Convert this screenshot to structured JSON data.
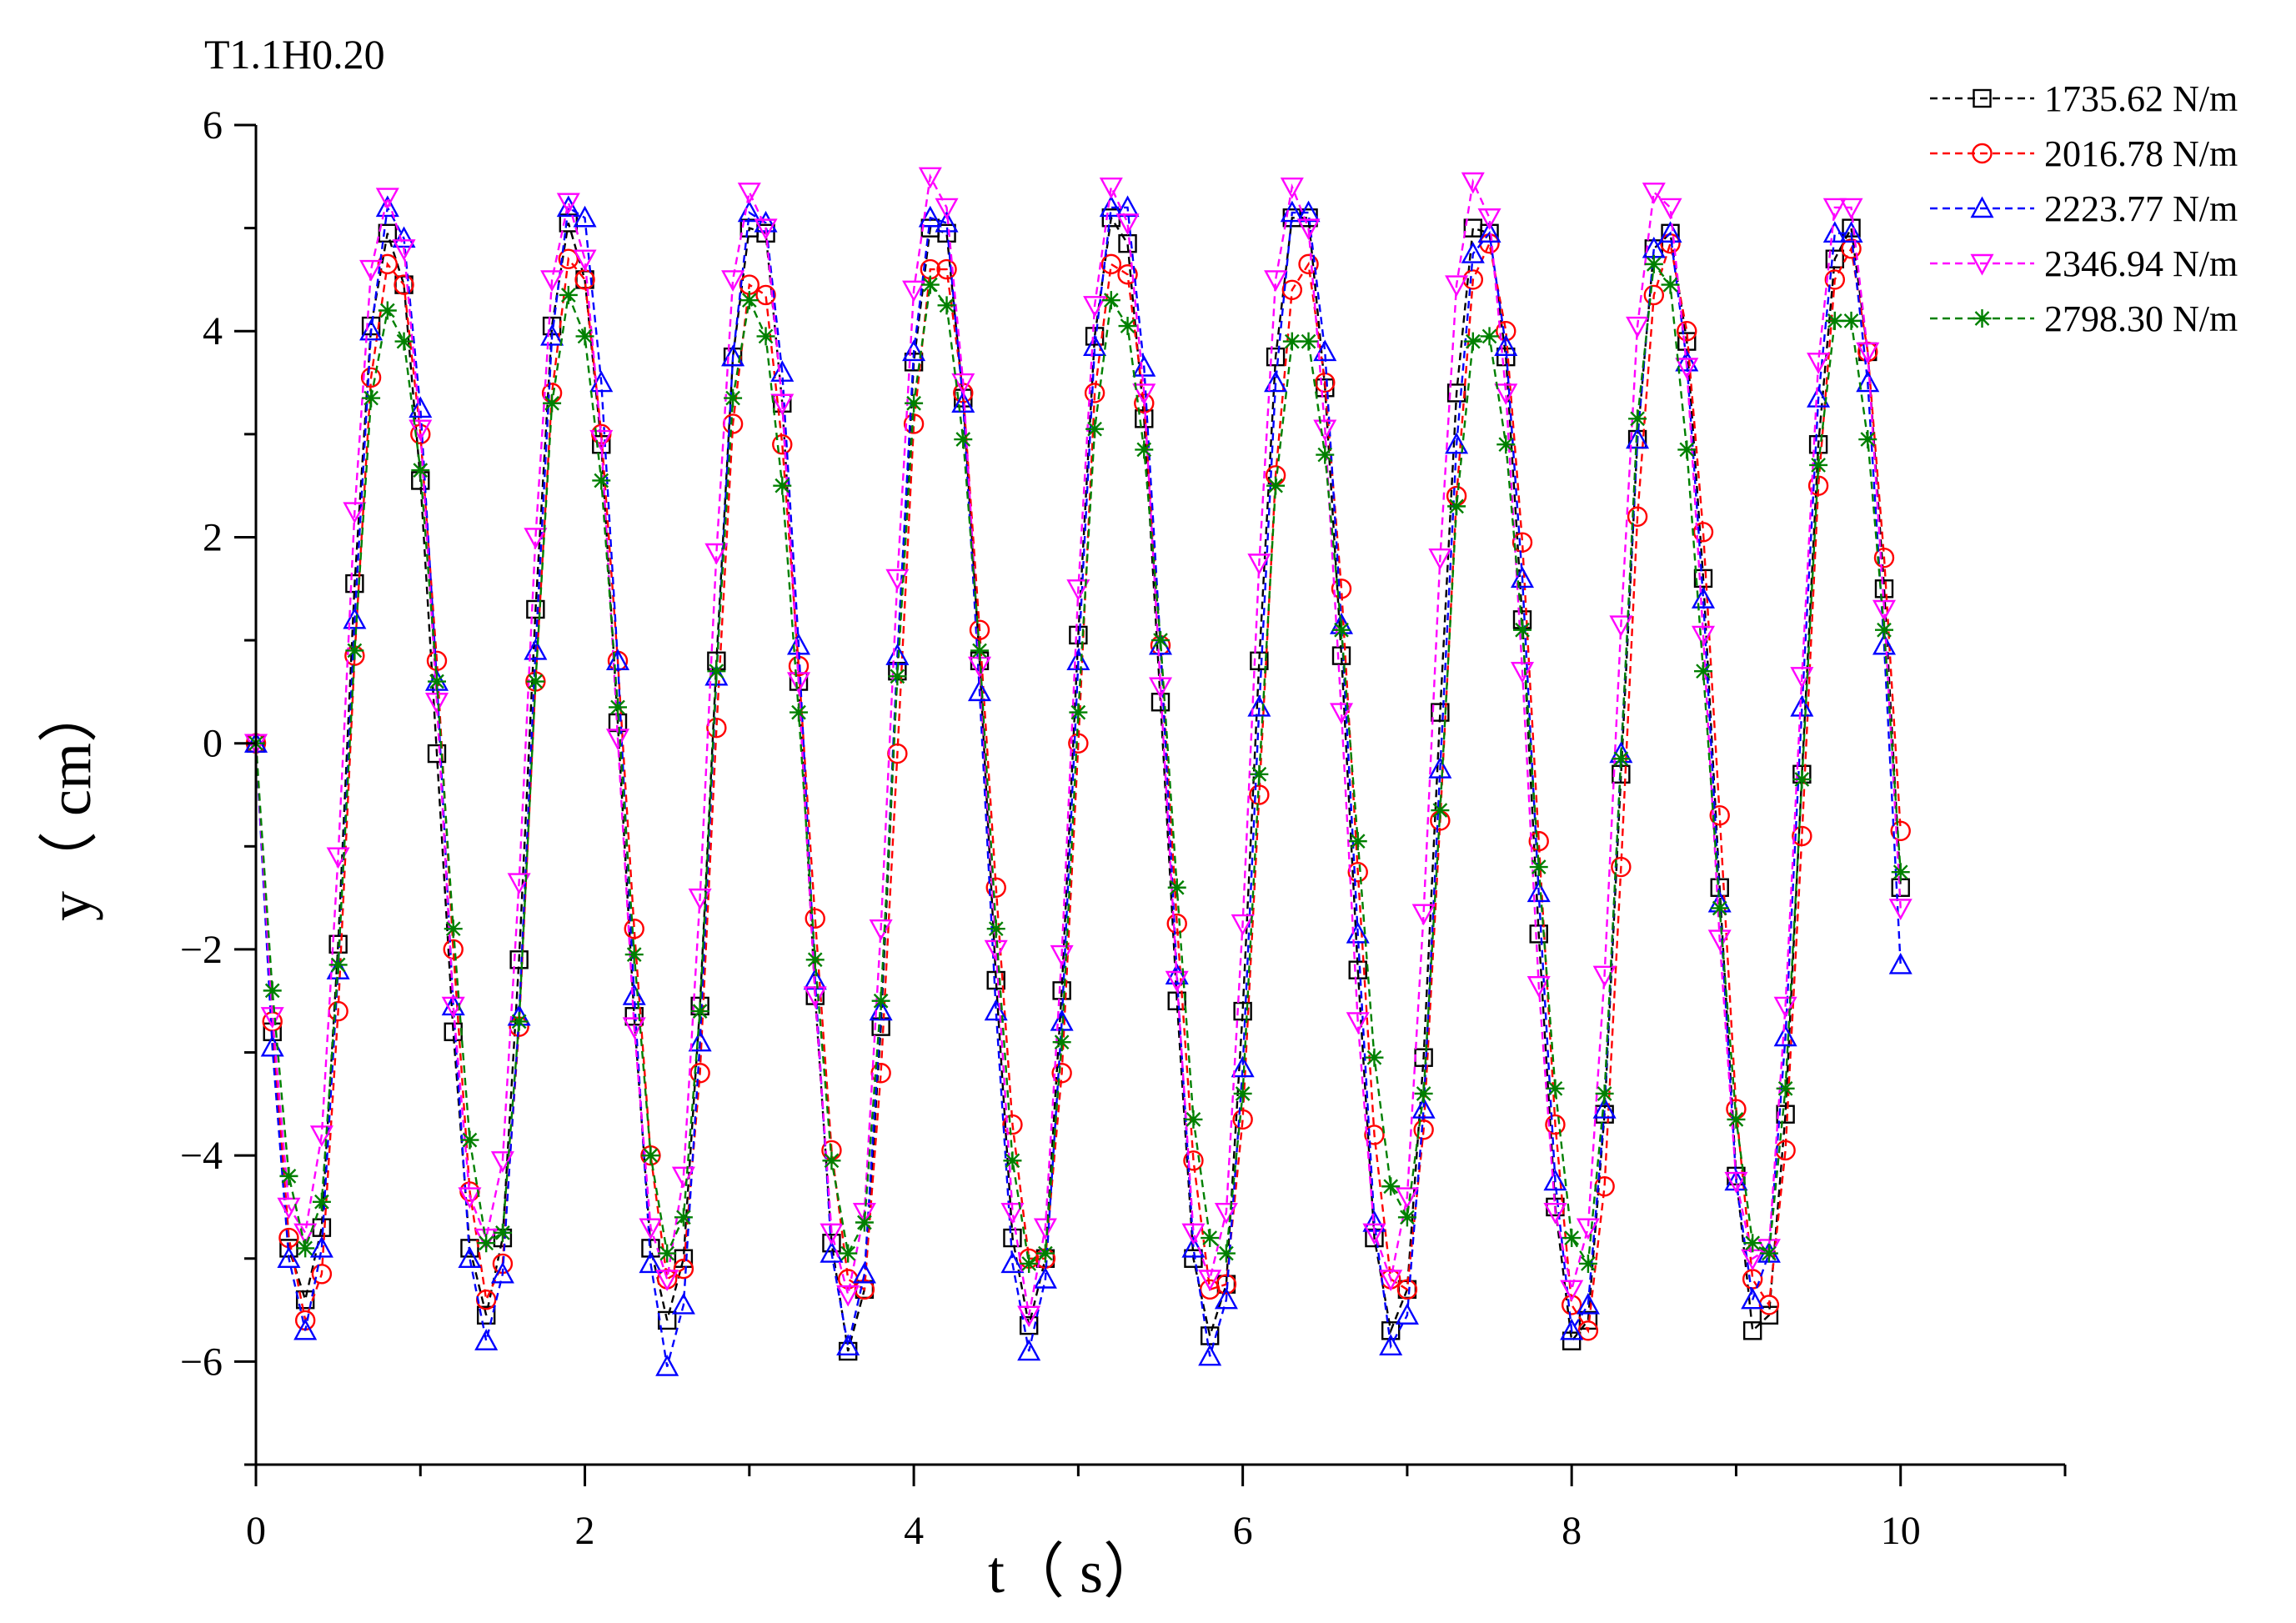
{
  "chart_data": {
    "type": "line",
    "title": "T1.1H0.20",
    "xlabel": "t（ s）",
    "ylabel": "y（ cm）",
    "xlim": [
      0,
      11
    ],
    "ylim": [
      -7,
      6
    ],
    "xticks": [
      0,
      2,
      4,
      6,
      8,
      10
    ],
    "xtick_labels": [
      "0",
      "2",
      "4",
      "6",
      "8",
      "10"
    ],
    "yticks": [
      6,
      4,
      2,
      0,
      -2,
      -4,
      -6
    ],
    "ytick_labels": [
      "6",
      "4",
      "2",
      "0",
      "−2",
      "−4",
      "−6"
    ],
    "legend_position": "top-right",
    "series": [
      {
        "name": "1735.62 N/m",
        "color": "#000000",
        "marker": "square",
        "x": [
          0,
          0.1,
          0.2,
          0.3,
          0.4,
          0.5,
          0.6,
          0.7,
          0.8,
          0.9,
          1.0,
          1.1,
          1.2,
          1.3,
          1.4,
          1.5,
          1.6,
          1.7,
          1.8,
          1.9,
          2.0,
          2.1,
          2.2,
          2.3,
          2.4,
          2.5,
          2.6,
          2.7,
          2.8,
          2.9,
          3.0,
          3.1,
          3.2,
          3.3,
          3.4,
          3.5,
          3.6,
          3.7,
          3.8,
          3.9,
          4.0,
          4.1,
          4.2,
          4.3,
          4.4,
          4.5,
          4.6,
          4.7,
          4.8,
          4.9,
          5.0,
          5.1,
          5.2,
          5.3,
          5.4,
          5.5,
          5.6,
          5.7,
          5.8,
          5.9,
          6.0,
          6.1,
          6.2,
          6.3,
          6.4,
          6.5,
          6.6,
          6.7,
          6.8,
          6.9,
          7.0,
          7.1,
          7.2,
          7.3,
          7.4,
          7.5,
          7.6,
          7.7,
          7.8,
          7.9,
          8.0,
          8.1,
          8.2,
          8.3,
          8.4,
          8.5,
          8.6,
          8.7,
          8.8,
          8.9,
          9.0,
          9.1,
          9.2,
          9.3,
          9.4,
          9.5,
          9.6,
          9.7,
          9.8,
          9.9,
          10.0
        ],
        "y": [
          0,
          -2.8,
          -4.9,
          -5.4,
          -4.7,
          -1.95,
          1.55,
          4.05,
          4.95,
          4.45,
          2.55,
          -0.1,
          -2.8,
          -4.9,
          -5.55,
          -4.8,
          -2.1,
          1.3,
          4.05,
          5.05,
          4.5,
          2.9,
          0.2,
          -2.65,
          -4.9,
          -5.6,
          -5.0,
          -2.55,
          0.8,
          3.75,
          5.0,
          4.95,
          3.3,
          0.6,
          -2.45,
          -4.85,
          -5.9,
          -5.3,
          -2.75,
          0.7,
          3.7,
          5.0,
          4.95,
          3.35,
          0.8,
          -2.3,
          -4.8,
          -5.65,
          -5.0,
          -2.4,
          1.05,
          3.95,
          5.1,
          4.85,
          3.15,
          0.4,
          -2.5,
          -5.0,
          -5.75,
          -5.25,
          -2.6,
          0.8,
          3.75,
          5.1,
          5.1,
          3.45,
          0.85,
          -2.2,
          -4.8,
          -5.7,
          -5.3,
          -3.05,
          0.3,
          3.4,
          5.0,
          4.95,
          3.75,
          1.2,
          -1.85,
          -4.5,
          -5.8,
          -5.6,
          -3.6,
          -0.3,
          2.95,
          4.8,
          4.95,
          3.9,
          1.6,
          -1.4,
          -4.2,
          -5.7,
          -5.55,
          -3.6,
          -0.3,
          2.9,
          4.7,
          5.0,
          3.8,
          1.5,
          -1.4
        ]
      },
      {
        "name": "2016.78 N/m",
        "color": "#ff0000",
        "marker": "circle",
        "x": [
          0,
          0.1,
          0.2,
          0.3,
          0.4,
          0.5,
          0.6,
          0.7,
          0.8,
          0.9,
          1.0,
          1.1,
          1.2,
          1.3,
          1.4,
          1.5,
          1.6,
          1.7,
          1.8,
          1.9,
          2.0,
          2.1,
          2.2,
          2.3,
          2.4,
          2.5,
          2.6,
          2.7,
          2.8,
          2.9,
          3.0,
          3.1,
          3.2,
          3.3,
          3.4,
          3.5,
          3.6,
          3.7,
          3.8,
          3.9,
          4.0,
          4.1,
          4.2,
          4.3,
          4.4,
          4.5,
          4.6,
          4.7,
          4.8,
          4.9,
          5.0,
          5.1,
          5.2,
          5.3,
          5.4,
          5.5,
          5.6,
          5.7,
          5.8,
          5.9,
          6.0,
          6.1,
          6.2,
          6.3,
          6.4,
          6.5,
          6.6,
          6.7,
          6.8,
          6.9,
          7.0,
          7.1,
          7.2,
          7.3,
          7.4,
          7.5,
          7.6,
          7.7,
          7.8,
          7.9,
          8.0,
          8.1,
          8.2,
          8.3,
          8.4,
          8.5,
          8.6,
          8.7,
          8.8,
          8.9,
          9.0,
          9.1,
          9.2,
          9.3,
          9.4,
          9.5,
          9.6,
          9.7,
          9.8,
          9.9,
          10.0
        ],
        "y": [
          0,
          -2.7,
          -4.8,
          -5.6,
          -5.15,
          -2.6,
          0.85,
          3.55,
          4.65,
          4.45,
          3.0,
          0.8,
          -2.0,
          -4.35,
          -5.4,
          -5.05,
          -2.75,
          0.6,
          3.4,
          4.7,
          4.5,
          3.0,
          0.8,
          -1.8,
          -4.0,
          -5.2,
          -5.1,
          -3.2,
          0.15,
          3.1,
          4.45,
          4.35,
          2.9,
          0.75,
          -1.7,
          -3.95,
          -5.2,
          -5.3,
          -3.2,
          -0.1,
          3.1,
          4.6,
          4.6,
          3.4,
          1.1,
          -1.4,
          -3.7,
          -5.0,
          -5.0,
          -3.2,
          0.0,
          3.4,
          4.65,
          4.55,
          3.3,
          0.95,
          -1.75,
          -4.05,
          -5.3,
          -5.25,
          -3.65,
          -0.5,
          2.6,
          4.4,
          4.65,
          3.5,
          1.5,
          -1.25,
          -3.8,
          -5.2,
          -5.3,
          -3.75,
          -0.75,
          2.4,
          4.5,
          4.85,
          4.0,
          1.95,
          -0.95,
          -3.7,
          -5.45,
          -5.7,
          -4.3,
          -1.2,
          2.2,
          4.35,
          4.85,
          4.0,
          2.05,
          -0.7,
          -3.55,
          -5.2,
          -5.45,
          -3.95,
          -0.9,
          2.5,
          4.5,
          4.8,
          3.8,
          1.8,
          -0.85
        ]
      },
      {
        "name": "2223.77 N/m",
        "color": "#0000ff",
        "marker": "triangle-up",
        "x": [
          0,
          0.1,
          0.2,
          0.3,
          0.4,
          0.5,
          0.6,
          0.7,
          0.8,
          0.9,
          1.0,
          1.1,
          1.2,
          1.3,
          1.4,
          1.5,
          1.6,
          1.7,
          1.8,
          1.9,
          2.0,
          2.1,
          2.2,
          2.3,
          2.4,
          2.5,
          2.6,
          2.7,
          2.8,
          2.9,
          3.0,
          3.1,
          3.2,
          3.3,
          3.4,
          3.5,
          3.6,
          3.7,
          3.8,
          3.9,
          4.0,
          4.1,
          4.2,
          4.3,
          4.4,
          4.5,
          4.6,
          4.7,
          4.8,
          4.9,
          5.0,
          5.1,
          5.2,
          5.3,
          5.4,
          5.5,
          5.6,
          5.7,
          5.8,
          5.9,
          6.0,
          6.1,
          6.2,
          6.3,
          6.4,
          6.5,
          6.6,
          6.7,
          6.8,
          6.9,
          7.0,
          7.1,
          7.2,
          7.3,
          7.4,
          7.5,
          7.6,
          7.7,
          7.8,
          7.9,
          8.0,
          8.1,
          8.2,
          8.3,
          8.4,
          8.5,
          8.6,
          8.7,
          8.8,
          8.9,
          9.0,
          9.1,
          9.2,
          9.3,
          9.4,
          9.5,
          9.6,
          9.7,
          9.8,
          9.9,
          10.0
        ],
        "y": [
          0,
          -2.95,
          -5.0,
          -5.7,
          -4.9,
          -2.2,
          1.2,
          4.0,
          5.2,
          4.9,
          3.25,
          0.6,
          -2.55,
          -5.0,
          -5.8,
          -5.15,
          -2.65,
          0.9,
          3.95,
          5.2,
          5.1,
          3.5,
          0.8,
          -2.45,
          -5.05,
          -6.05,
          -5.45,
          -2.9,
          0.65,
          3.75,
          5.15,
          5.05,
          3.6,
          0.95,
          -2.3,
          -4.95,
          -5.85,
          -5.15,
          -2.6,
          0.85,
          3.8,
          5.1,
          5.05,
          3.3,
          0.5,
          -2.6,
          -5.05,
          -5.9,
          -5.2,
          -2.7,
          0.8,
          3.85,
          5.2,
          5.2,
          3.65,
          0.95,
          -2.25,
          -4.9,
          -5.95,
          -5.4,
          -3.15,
          0.35,
          3.5,
          5.15,
          5.15,
          3.8,
          1.15,
          -1.85,
          -4.65,
          -5.85,
          -5.55,
          -3.55,
          -0.25,
          2.9,
          4.75,
          4.95,
          3.85,
          1.6,
          -1.45,
          -4.25,
          -5.7,
          -5.45,
          -3.55,
          -0.1,
          2.95,
          4.8,
          4.95,
          3.7,
          1.4,
          -1.55,
          -4.25,
          -5.4,
          -4.95,
          -2.85,
          0.35,
          3.35,
          4.95,
          4.95,
          3.5,
          0.95,
          -2.15
        ]
      },
      {
        "name": "2346.94 N/m",
        "color": "#ff00ff",
        "marker": "triangle-down",
        "x": [
          0,
          0.1,
          0.2,
          0.3,
          0.4,
          0.5,
          0.6,
          0.7,
          0.8,
          0.9,
          1.0,
          1.1,
          1.2,
          1.3,
          1.4,
          1.5,
          1.6,
          1.7,
          1.8,
          1.9,
          2.0,
          2.1,
          2.2,
          2.3,
          2.4,
          2.5,
          2.6,
          2.7,
          2.8,
          2.9,
          3.0,
          3.1,
          3.2,
          3.3,
          3.4,
          3.5,
          3.6,
          3.7,
          3.8,
          3.9,
          4.0,
          4.1,
          4.2,
          4.3,
          4.4,
          4.5,
          4.6,
          4.7,
          4.8,
          4.9,
          5.0,
          5.1,
          5.2,
          5.3,
          5.4,
          5.5,
          5.6,
          5.7,
          5.8,
          5.9,
          6.0,
          6.1,
          6.2,
          6.3,
          6.4,
          6.5,
          6.6,
          6.7,
          6.8,
          6.9,
          7.0,
          7.1,
          7.2,
          7.3,
          7.4,
          7.5,
          7.6,
          7.7,
          7.8,
          7.9,
          8.0,
          8.1,
          8.2,
          8.3,
          8.4,
          8.5,
          8.6,
          8.7,
          8.8,
          8.9,
          9.0,
          9.1,
          9.2,
          9.3,
          9.4,
          9.5,
          9.6,
          9.7,
          9.8,
          9.9,
          10.0
        ],
        "y": [
          0,
          -2.65,
          -4.5,
          -4.75,
          -3.8,
          -1.1,
          2.25,
          4.6,
          5.3,
          4.8,
          3.05,
          0.4,
          -2.55,
          -4.4,
          -4.8,
          -4.05,
          -1.35,
          2.0,
          4.5,
          5.25,
          4.7,
          2.95,
          0.05,
          -2.75,
          -4.7,
          -5.2,
          -4.2,
          -1.5,
          1.85,
          4.5,
          5.35,
          5.0,
          3.3,
          0.6,
          -2.45,
          -4.75,
          -5.35,
          -4.55,
          -1.8,
          1.6,
          4.4,
          5.5,
          5.2,
          3.5,
          0.75,
          -2.0,
          -4.55,
          -5.55,
          -4.7,
          -2.05,
          1.5,
          4.25,
          5.4,
          5.05,
          3.4,
          0.55,
          -2.3,
          -4.75,
          -5.2,
          -4.55,
          -1.75,
          1.75,
          4.5,
          5.4,
          5.0,
          3.05,
          0.3,
          -2.7,
          -4.75,
          -5.2,
          -4.4,
          -1.65,
          1.8,
          4.45,
          5.45,
          5.1,
          3.4,
          0.7,
          -2.35,
          -4.55,
          -5.3,
          -4.7,
          -2.25,
          1.15,
          4.05,
          5.35,
          5.2,
          3.65,
          1.05,
          -1.9,
          -4.25,
          -5.0,
          -4.9,
          -2.55,
          0.65,
          3.7,
          5.2,
          5.2,
          3.8,
          1.3,
          -1.6
        ]
      },
      {
        "name": "2798.30 N/m",
        "color": "#008000",
        "marker": "asterisk",
        "x": [
          0,
          0.1,
          0.2,
          0.3,
          0.4,
          0.5,
          0.6,
          0.7,
          0.8,
          0.9,
          1.0,
          1.1,
          1.2,
          1.3,
          1.4,
          1.5,
          1.6,
          1.7,
          1.8,
          1.9,
          2.0,
          2.1,
          2.2,
          2.3,
          2.4,
          2.5,
          2.6,
          2.7,
          2.8,
          2.9,
          3.0,
          3.1,
          3.2,
          3.3,
          3.4,
          3.5,
          3.6,
          3.7,
          3.8,
          3.9,
          4.0,
          4.1,
          4.2,
          4.3,
          4.4,
          4.5,
          4.6,
          4.7,
          4.8,
          4.9,
          5.0,
          5.1,
          5.2,
          5.3,
          5.4,
          5.5,
          5.6,
          5.7,
          5.8,
          5.9,
          6.0,
          6.1,
          6.2,
          6.3,
          6.4,
          6.5,
          6.6,
          6.7,
          6.8,
          6.9,
          7.0,
          7.1,
          7.2,
          7.3,
          7.4,
          7.5,
          7.6,
          7.7,
          7.8,
          7.9,
          8.0,
          8.1,
          8.2,
          8.3,
          8.4,
          8.5,
          8.6,
          8.7,
          8.8,
          8.9,
          9.0,
          9.1,
          9.2,
          9.3,
          9.4,
          9.5,
          9.6,
          9.7,
          9.8,
          9.9,
          10.0
        ],
        "y": [
          0,
          -2.4,
          -4.2,
          -4.9,
          -4.45,
          -2.15,
          0.9,
          3.35,
          4.2,
          3.9,
          2.65,
          0.6,
          -1.8,
          -3.85,
          -4.85,
          -4.75,
          -2.7,
          0.6,
          3.3,
          4.35,
          3.95,
          2.55,
          0.35,
          -2.05,
          -4.0,
          -4.95,
          -4.6,
          -2.6,
          0.7,
          3.35,
          4.3,
          3.95,
          2.5,
          0.3,
          -2.1,
          -4.05,
          -4.95,
          -4.65,
          -2.5,
          0.65,
          3.3,
          4.45,
          4.25,
          2.95,
          0.9,
          -1.8,
          -4.05,
          -5.05,
          -4.95,
          -2.9,
          0.3,
          3.05,
          4.3,
          4.05,
          2.85,
          1.0,
          -1.4,
          -3.65,
          -4.8,
          -4.95,
          -3.4,
          -0.3,
          2.5,
          3.9,
          3.9,
          2.8,
          1.1,
          -0.95,
          -3.05,
          -4.3,
          -4.6,
          -3.4,
          -0.65,
          2.3,
          3.9,
          3.95,
          2.9,
          1.1,
          -1.2,
          -3.35,
          -4.8,
          -5.05,
          -3.4,
          -0.15,
          3.15,
          4.65,
          4.45,
          2.85,
          0.7,
          -1.6,
          -3.65,
          -4.85,
          -4.95,
          -3.35,
          -0.35,
          2.7,
          4.1,
          4.1,
          2.95,
          1.1,
          -1.25
        ]
      }
    ]
  }
}
